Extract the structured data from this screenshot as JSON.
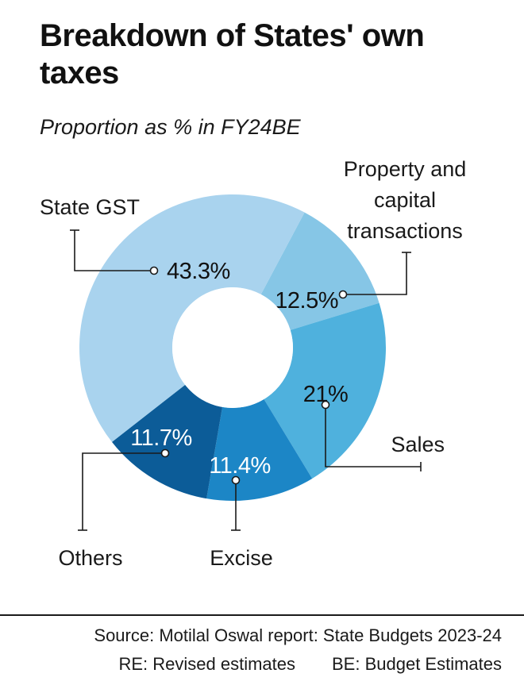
{
  "title": "Breakdown of States' own taxes",
  "subtitle": "Proportion as % in FY24BE",
  "chart_data": {
    "type": "pie",
    "variant": "donut",
    "categories": [
      "State GST",
      "Property and capital transactions",
      "Sales",
      "Excise",
      "Others"
    ],
    "values": [
      43.3,
      12.5,
      21,
      11.4,
      11.7
    ],
    "value_labels": [
      "43.3%",
      "12.5%",
      "21%",
      "11.4%",
      "11.7%"
    ],
    "colors": [
      "#a9d3ee",
      "#86c6e6",
      "#4fb1dd",
      "#1c86c6",
      "#0c5c98"
    ],
    "label_colors": [
      "#111111",
      "#111111",
      "#111111",
      "#ffffff",
      "#ffffff"
    ],
    "legend_labels": [
      [
        "State GST"
      ],
      [
        "Property and",
        "capital",
        "transactions"
      ],
      [
        "Sales"
      ],
      [
        "Excise"
      ],
      [
        "Others"
      ]
    ]
  },
  "footer": {
    "source": "Source: Motilal Oswal report: State Budgets 2023-24",
    "note_re": "RE: Revised estimates",
    "note_be": "BE: Budget Estimates"
  }
}
